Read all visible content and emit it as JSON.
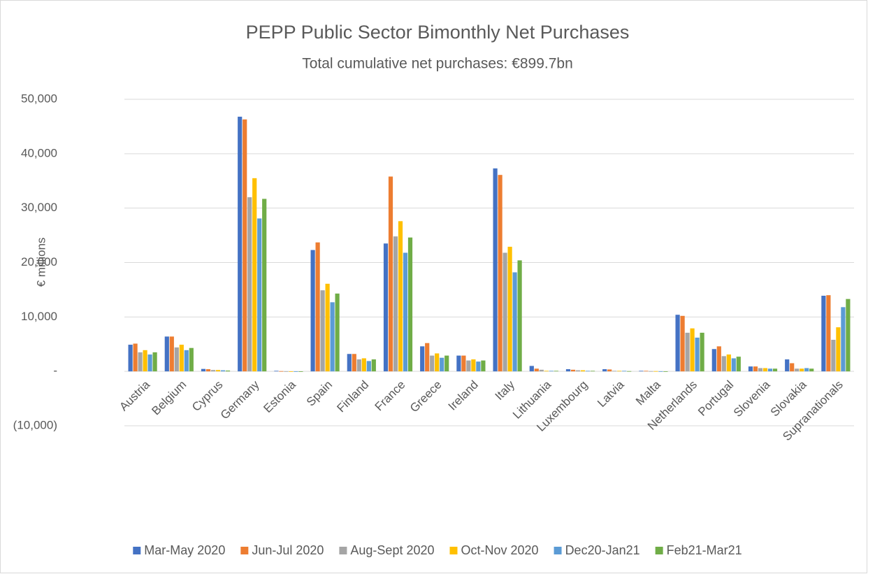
{
  "chart_data": {
    "type": "bar",
    "title": "PEPP Public Sector Bimonthly Net Purchases",
    "subtitle": "Total cumulative net purchases: €899.7bn",
    "y_label": "€ millions",
    "categories": [
      "Austria",
      "Belgium",
      "Cyprus",
      "Germany",
      "Estonia",
      "Spain",
      "Finland",
      "France",
      "Greece",
      "Ireland",
      "Italy",
      "Lithuania",
      "Luxembourg",
      "Latvia",
      "Malta",
      "Netherlands",
      "Portugal",
      "Slovenia",
      "Slovakia",
      "Supranationals"
    ],
    "series": [
      {
        "name": "Mar-May 2020",
        "color": "#4472c4",
        "values": [
          4900,
          6400,
          450,
          46800,
          100,
          22300,
          3200,
          23500,
          4600,
          2900,
          37300,
          1000,
          400,
          400,
          100,
          10400,
          4100,
          900,
          2200,
          13900
        ]
      },
      {
        "name": "Jun-Jul 2020",
        "color": "#ed7d31",
        "values": [
          5100,
          6400,
          400,
          46300,
          50,
          23700,
          3200,
          35800,
          5200,
          2900,
          36100,
          500,
          300,
          350,
          100,
          10200,
          4600,
          900,
          1500,
          14000
        ]
      },
      {
        "name": "Aug-Sept 2020",
        "color": "#a5a5a5",
        "values": [
          3500,
          4400,
          250,
          32000,
          30,
          14900,
          2200,
          24800,
          2900,
          2000,
          21800,
          300,
          200,
          100,
          50,
          7100,
          2800,
          600,
          500,
          5800
        ]
      },
      {
        "name": "Oct-Nov 2020",
        "color": "#ffc000",
        "values": [
          3900,
          4900,
          250,
          35500,
          20,
          16100,
          2400,
          27600,
          3300,
          2200,
          22900,
          100,
          200,
          100,
          50,
          7900,
          3100,
          600,
          500,
          8100
        ]
      },
      {
        "name": "Dec20-Jan21",
        "color": "#5b9bd5",
        "values": [
          3100,
          3900,
          200,
          28100,
          10,
          12700,
          1900,
          21800,
          2500,
          1800,
          18200,
          100,
          100,
          100,
          30,
          6200,
          2400,
          500,
          600,
          11800
        ]
      },
      {
        "name": "Feb21-Mar21",
        "color": "#70ad47",
        "values": [
          3500,
          4300,
          150,
          31700,
          10,
          14300,
          2200,
          24600,
          2900,
          2000,
          20400,
          100,
          100,
          50,
          20,
          7100,
          2700,
          500,
          500,
          13300
        ]
      }
    ],
    "ylim": [
      -10000,
      50000
    ],
    "yticks": [
      {
        "value": -10000,
        "label": "(10,000)"
      },
      {
        "value": 0,
        "label": "-"
      },
      {
        "value": 10000,
        "label": "10,000"
      },
      {
        "value": 20000,
        "label": "20,000"
      },
      {
        "value": 30000,
        "label": "30,000"
      },
      {
        "value": 40000,
        "label": "40,000"
      },
      {
        "value": 50000,
        "label": "50,000"
      }
    ],
    "grid": true,
    "legend": "bottom"
  }
}
